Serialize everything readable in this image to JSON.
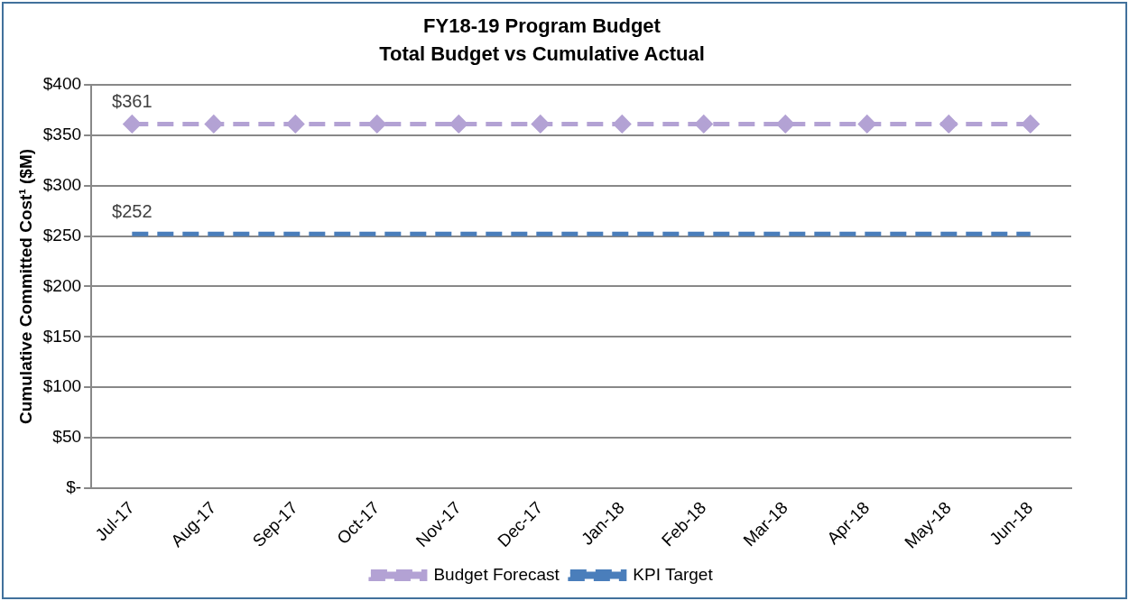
{
  "chart_data": {
    "type": "line",
    "title": "FY18-19 Program Budget",
    "subtitle": "Total Budget vs Cumulative Actual",
    "ylabel": "Cumulative Committed Cost¹ ($M)",
    "categories": [
      "Jul-17",
      "Aug-17",
      "Sep-17",
      "Oct-17",
      "Nov-17",
      "Dec-17",
      "Jan-18",
      "Feb-18",
      "Mar-18",
      "Apr-18",
      "May-18",
      "Jun-18"
    ],
    "series": [
      {
        "name": "Budget Forecast",
        "color": "#b3a2d4",
        "marker": "diamond",
        "line_style": "dashed",
        "values": [
          361,
          361,
          361,
          361,
          361,
          361,
          361,
          361,
          361,
          361,
          361,
          361
        ],
        "value_labels": [
          "$361",
          null,
          null,
          null,
          null,
          null,
          null,
          null,
          null,
          null,
          null,
          null
        ]
      },
      {
        "name": "KPI Target",
        "color": "#4a7ebb",
        "marker": "none",
        "line_style": "dashed",
        "values": [
          252,
          252,
          252,
          252,
          252,
          252,
          252,
          252,
          252,
          252,
          252,
          252
        ],
        "value_labels": [
          "$252",
          null,
          null,
          null,
          null,
          null,
          null,
          null,
          null,
          null,
          null,
          null
        ]
      }
    ],
    "ylim": [
      0,
      400
    ],
    "yticks": [
      {
        "value": 0,
        "label": "$-"
      },
      {
        "value": 50,
        "label": "$50"
      },
      {
        "value": 100,
        "label": "$100"
      },
      {
        "value": 150,
        "label": "$150"
      },
      {
        "value": 200,
        "label": "$200"
      },
      {
        "value": 250,
        "label": "$250"
      },
      {
        "value": 300,
        "label": "$300"
      },
      {
        "value": 350,
        "label": "$350"
      },
      {
        "value": 400,
        "label": "$400"
      }
    ],
    "grid": "y",
    "legend": "bottom"
  }
}
